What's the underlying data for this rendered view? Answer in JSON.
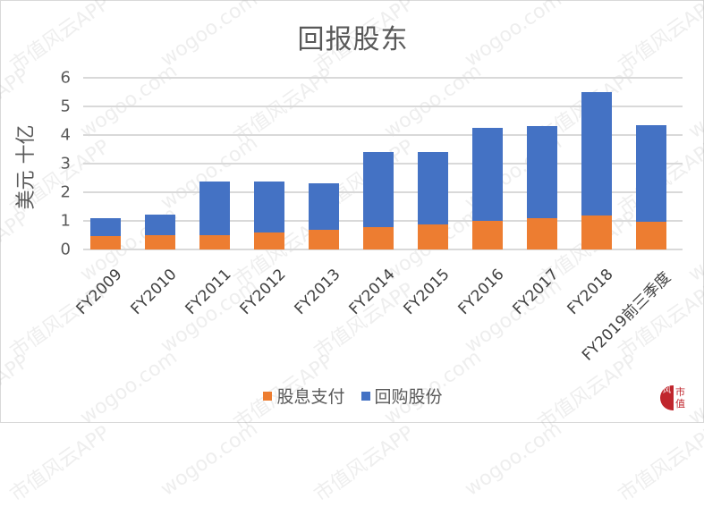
{
  "chart_data": {
    "type": "bar",
    "stacked": true,
    "title": "回报股东",
    "xlabel": "",
    "ylabel": "美元 十亿",
    "ylim": [
      0,
      6
    ],
    "yticks": [
      0,
      1,
      2,
      3,
      4,
      5,
      6
    ],
    "grid": true,
    "legend_position": "bottom",
    "categories": [
      "FY2009",
      "FY2010",
      "FY2011",
      "FY2012",
      "FY2013",
      "FY2014",
      "FY2015",
      "FY2016",
      "FY2017",
      "FY2018",
      "FY2019前三季度"
    ],
    "series": [
      {
        "name": "股息支付",
        "color": "#ed7d31",
        "values": [
          0.47,
          0.5,
          0.5,
          0.6,
          0.7,
          0.78,
          0.88,
          1.0,
          1.1,
          1.2,
          0.97
        ]
      },
      {
        "name": "回购股份",
        "color": "#4472c4",
        "values": [
          0.63,
          0.72,
          1.88,
          1.78,
          1.62,
          2.62,
          2.52,
          3.25,
          3.2,
          4.3,
          3.38
        ]
      }
    ],
    "totals": [
      1.1,
      1.22,
      2.38,
      2.38,
      2.32,
      3.4,
      3.4,
      4.25,
      4.3,
      5.5,
      4.35
    ]
  },
  "watermark": {
    "text_cn": "市值风云APP",
    "text_en": "wogoo.com"
  },
  "logo": {
    "icon": "shizhifengyun-logo",
    "glyph": "风",
    "text_line1": "市",
    "text_line2": "值",
    "color": "#c0262d"
  }
}
